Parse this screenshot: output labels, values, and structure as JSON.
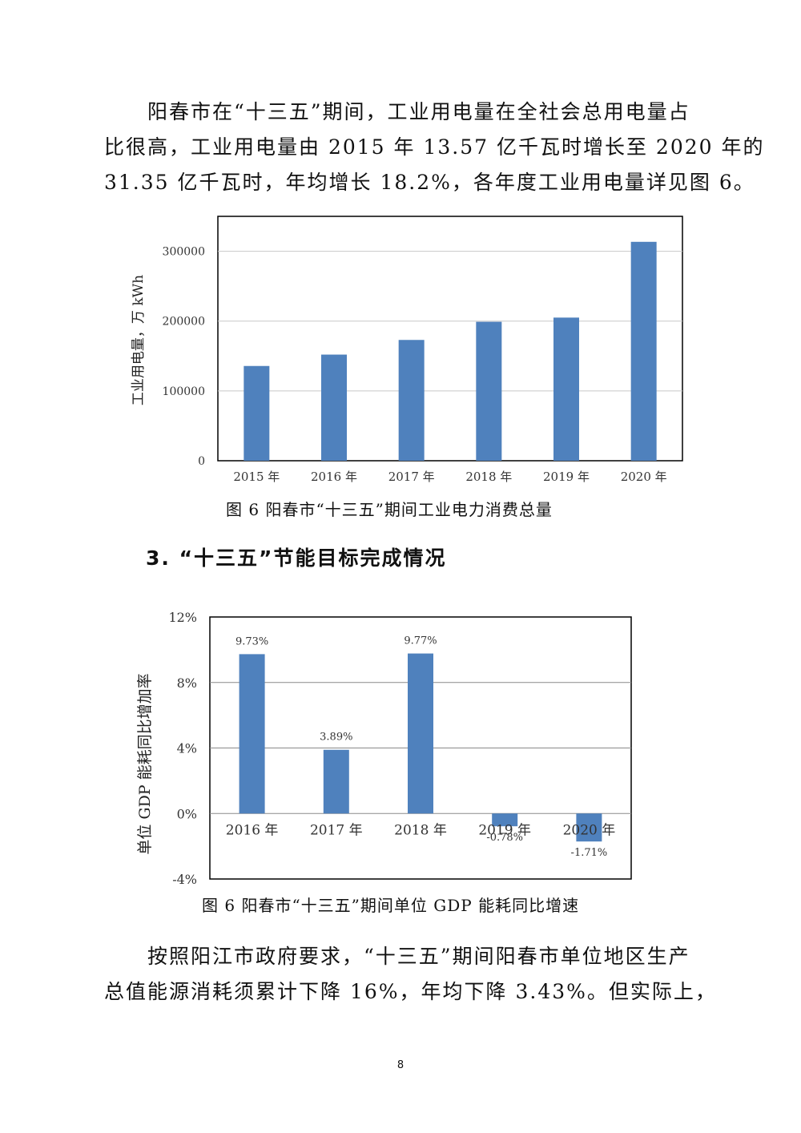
{
  "para1": {
    "lines": [
      "阳春市在“十三五”期间，工业用电量在全社会总用电量占",
      "比很高，工业用电量由 2015 年 13.57 亿千瓦时增长至 2020 年的",
      "31.35 亿千瓦时，年均增长 18.2%，各年度工业用电量详见图 6。"
    ]
  },
  "caption1": "图 6 阳春市“十三五”期间工业电力消费总量",
  "heading": "3. “十三五”节能目标完成情况",
  "caption2": "图 6 阳春市“十三五”期间单位 GDP 能耗同比增速",
  "para2": {
    "lines": [
      "按照阳江市政府要求，“十三五”期间阳春市单位地区生产",
      "总值能源消耗须累计下降 16%，年均下降 3.43%。但实际上，"
    ]
  },
  "page_number": "8",
  "colors": {
    "bar": "#4f81bd",
    "grid": "#999999",
    "frame": "#000000"
  },
  "chart_data": [
    {
      "type": "bar",
      "categories": [
        "2015 年",
        "2016 年",
        "2017 年",
        "2018 年",
        "2019 年",
        "2020 年"
      ],
      "values": [
        135700,
        152000,
        173000,
        199000,
        205000,
        313500
      ],
      "ylabel": "工业用电量，万 kWh",
      "ylim": [
        0,
        350000
      ],
      "yticks": [
        0,
        100000,
        200000,
        300000
      ],
      "ytick_labels": [
        "0",
        "100000",
        "200000",
        "300000"
      ],
      "grid": true
    },
    {
      "type": "bar",
      "categories": [
        "2016 年",
        "2017 年",
        "2018 年",
        "2019 年",
        "2020 年"
      ],
      "values": [
        9.73,
        3.89,
        9.77,
        -0.78,
        -1.71
      ],
      "data_labels": [
        "9.73%",
        "3.89%",
        "9.77%",
        "-0.78%",
        "-1.71%"
      ],
      "ylabel": "单位 GDP 能耗同比增加率",
      "ylim": [
        -4,
        12
      ],
      "yticks": [
        -4,
        0,
        4,
        8,
        12
      ],
      "ytick_labels": [
        "-4%",
        "0%",
        "4%",
        "8%",
        "12%"
      ],
      "grid": true
    }
  ]
}
